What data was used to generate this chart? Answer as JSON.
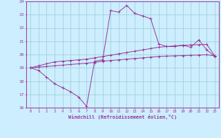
{
  "xlabel": "Windchill (Refroidissement éolien,°C)",
  "ylabel": "",
  "xlim": [
    -0.5,
    23.5
  ],
  "ylim": [
    16,
    24
  ],
  "xticks": [
    0,
    1,
    2,
    3,
    4,
    5,
    6,
    7,
    8,
    9,
    10,
    11,
    12,
    13,
    14,
    15,
    16,
    17,
    18,
    19,
    20,
    21,
    22,
    23
  ],
  "yticks": [
    16,
    17,
    18,
    19,
    20,
    21,
    22,
    23,
    24
  ],
  "line_color": "#993399",
  "bg_color": "#cceeff",
  "grid_color": "#99cccc",
  "line1_y": [
    19.0,
    18.8,
    18.3,
    17.8,
    17.5,
    17.2,
    16.8,
    16.1,
    19.5,
    19.6,
    23.3,
    23.2,
    23.7,
    23.1,
    22.9,
    22.7,
    20.8,
    20.6,
    20.6,
    20.7,
    20.55,
    21.1,
    20.35,
    19.85
  ],
  "line2_y": [
    19.0,
    19.15,
    19.3,
    19.45,
    19.5,
    19.55,
    19.6,
    19.65,
    19.75,
    19.85,
    19.95,
    20.05,
    20.15,
    20.25,
    20.35,
    20.45,
    20.55,
    20.6,
    20.65,
    20.7,
    20.72,
    20.74,
    20.76,
    19.9
  ],
  "line3_y": [
    19.0,
    19.05,
    19.1,
    19.15,
    19.2,
    19.25,
    19.3,
    19.35,
    19.4,
    19.5,
    19.55,
    19.6,
    19.65,
    19.7,
    19.75,
    19.8,
    19.85,
    19.88,
    19.9,
    19.92,
    19.94,
    19.96,
    19.98,
    19.9
  ]
}
